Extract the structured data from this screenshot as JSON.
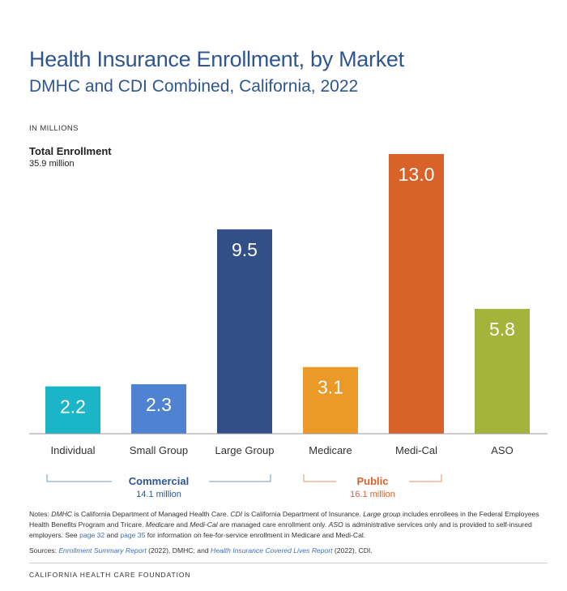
{
  "title": "Health Insurance Enrollment, by Market",
  "subtitle": "DMHC and CDI Combined, California, 2022",
  "units": "IN MILLIONS",
  "total": {
    "label": "Total Enrollment",
    "value": "35.9 million"
  },
  "groups": [
    {
      "label": "Commercial",
      "value": "14.1 million",
      "color": "#2f5690"
    },
    {
      "label": "Public",
      "value": "16.1 million",
      "color": "#d9622a"
    }
  ],
  "chart_data": {
    "type": "bar",
    "categories": [
      "Individual",
      "Small Group",
      "Large Group",
      "Medicare",
      "Medi-Cal",
      "ASO"
    ],
    "values": [
      2.2,
      2.3,
      9.5,
      3.1,
      13.0,
      5.8
    ],
    "data_labels": [
      "2.2",
      "2.3",
      "9.5",
      "3.1",
      "13.0",
      "5.8"
    ],
    "colors": [
      "#1ab5c6",
      "#4f83d1",
      "#324f88",
      "#eb9a27",
      "#d9622a",
      "#a4b339"
    ],
    "title": "Health Insurance Enrollment, by Market",
    "ylabel": "IN MILLIONS",
    "ylim": [
      0,
      13.0
    ],
    "grid": false,
    "legend": "none"
  },
  "notes": {
    "p1_a": "Notes: ",
    "p1_b": "DMHC",
    "p1_c": " is California Department of Managed Health Care. ",
    "p1_d": "CDI",
    "p1_e": " is California Department of Insurance. ",
    "p1_f": "Large group",
    "p1_g": " includes enrollees in the Federal Employees Health Benefits Program and Tricare. ",
    "p1_h": "Medicare",
    "p1_i": " and ",
    "p1_j": "Medi-Cal",
    "p1_k": " are managed care enrollment only. ",
    "p1_l": "ASO",
    "p1_m": " is administrative services only and is provided to self-insured employers. See ",
    "p1_n": "page 32",
    "p1_o": " and ",
    "p1_p": "page 35",
    "p1_q": " for information on fee-for-service enrollment in Medicare and Medi-Cal.",
    "p2_a": "Sources: ",
    "p2_b": "Enrollment Summary Report",
    "p2_c": " (2022), DMHC; and ",
    "p2_d": "Health Insurance Covered Lives Report",
    "p2_e": " (2022), CDI."
  },
  "footer": "CALIFORNIA HEALTH CARE FOUNDATION"
}
